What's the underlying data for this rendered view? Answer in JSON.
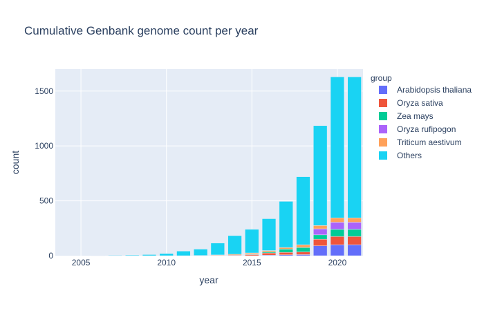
{
  "chart_data": {
    "type": "bar",
    "stacked": true,
    "title": "Cumulative Genbank genome count per year",
    "xlabel": "year",
    "ylabel": "count",
    "xlim": [
      2003.5,
      2021.5
    ],
    "ylim": [
      0,
      1700
    ],
    "x_ticks": [
      2005,
      2010,
      2015,
      2020
    ],
    "y_ticks": [
      0,
      500,
      1000,
      1500
    ],
    "grid": true,
    "legend": {
      "title": "group",
      "position": "right"
    },
    "x": [
      2006,
      2007,
      2008,
      2009,
      2010,
      2011,
      2012,
      2013,
      2014,
      2015,
      2016,
      2017,
      2018,
      2019,
      2020,
      2021
    ],
    "series": [
      {
        "name": "Arabidopsis thaliana",
        "color": "#636efa",
        "values": [
          0,
          0,
          0,
          0,
          0,
          0,
          0,
          0,
          0,
          0,
          5,
          8,
          10,
          90,
          100,
          100
        ]
      },
      {
        "name": "Oryza sativa",
        "color": "#ef553b",
        "values": [
          0,
          0,
          0,
          0,
          0,
          0,
          0,
          2,
          5,
          10,
          20,
          22,
          25,
          60,
          75,
          75
        ]
      },
      {
        "name": "Zea mays",
        "color": "#00cc96",
        "values": [
          0,
          0,
          0,
          0,
          0,
          0,
          0,
          0,
          0,
          5,
          10,
          30,
          40,
          40,
          65,
          65
        ]
      },
      {
        "name": "Oryza rufipogon",
        "color": "#ab63fa",
        "values": [
          0,
          0,
          0,
          0,
          0,
          0,
          0,
          0,
          0,
          0,
          0,
          0,
          0,
          55,
          65,
          65
        ]
      },
      {
        "name": "Triticum aestivum",
        "color": "#ffa15a",
        "values": [
          0,
          0,
          0,
          0,
          0,
          0,
          2,
          5,
          8,
          10,
          12,
          15,
          25,
          30,
          40,
          40
        ]
      },
      {
        "name": "Others",
        "color": "#19d3f3",
        "values": [
          3,
          4,
          6,
          10,
          20,
          42,
          58,
          108,
          170,
          215,
          290,
          420,
          620,
          910,
          1285,
          1285
        ]
      }
    ]
  }
}
